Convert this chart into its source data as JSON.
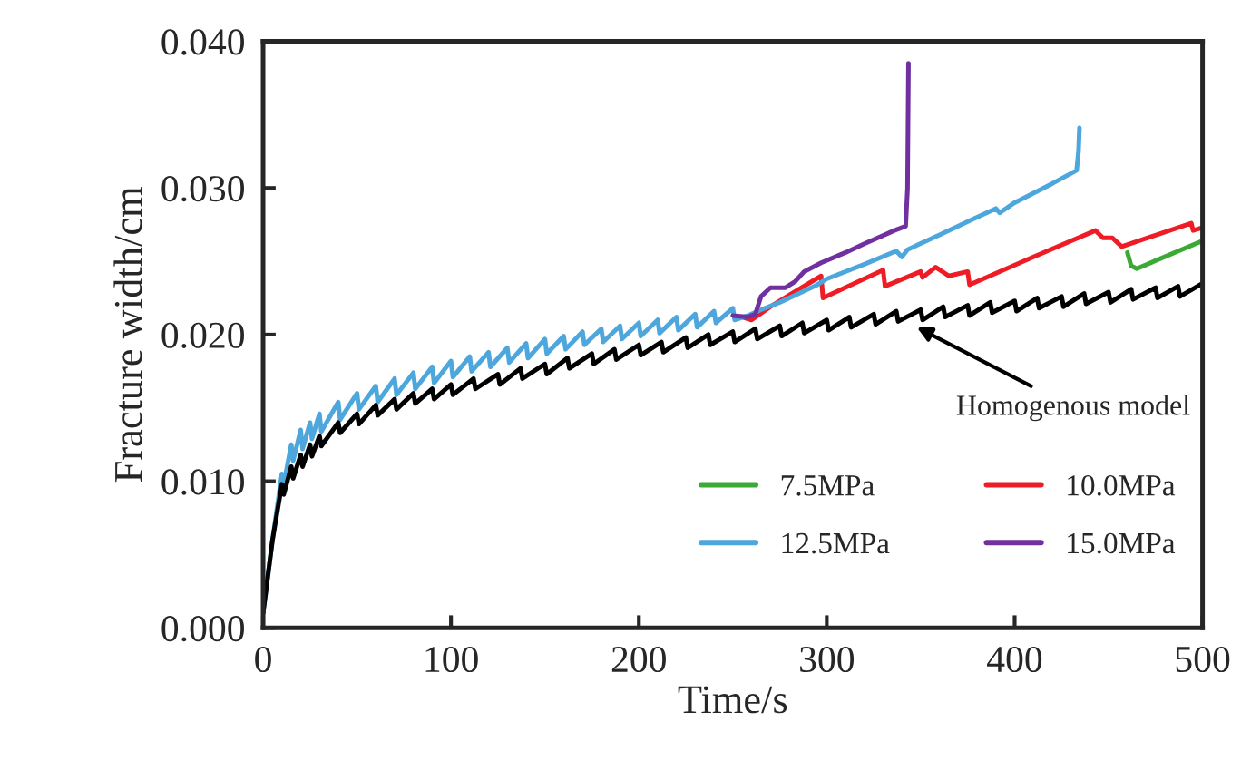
{
  "chart_data": {
    "type": "line",
    "xlabel": "Time/s",
    "ylabel": "Fracture width/cm",
    "xlim": [
      0,
      500
    ],
    "xticks": [
      0,
      100,
      200,
      300,
      400,
      500
    ],
    "ylim": [
      0,
      0.04
    ],
    "yticks": [
      {
        "value": 0,
        "label": "0.000"
      },
      {
        "value": 0.01,
        "label": "0.010"
      },
      {
        "value": 0.02,
        "label": "0.020"
      },
      {
        "value": 0.03,
        "label": "0.030"
      },
      {
        "value": 0.04,
        "label": "0.040"
      }
    ],
    "grid": false,
    "legend": "bottom right",
    "marker": "none",
    "line_style": "solid",
    "annotations": [
      {
        "text": "Homogenous model",
        "x": 348,
        "y": 0.0205
      }
    ],
    "series": [
      {
        "name": "7.5MPa",
        "color": "#3aaa35",
        "x": [
          460,
          462,
          465,
          500
        ],
        "values": [
          0.0256,
          0.0247,
          0.0245,
          0.0264
        ]
      },
      {
        "name": "10.0MPa",
        "color": "#ee1c25",
        "x": [
          255,
          260,
          270,
          280,
          297,
          298,
          330,
          331,
          350,
          351,
          358,
          365,
          375,
          376,
          410,
          443,
          447,
          452,
          457,
          494,
          495,
          500
        ],
        "values": [
          0.0212,
          0.021,
          0.0219,
          0.0227,
          0.024,
          0.0225,
          0.0244,
          0.0233,
          0.0243,
          0.0239,
          0.0246,
          0.024,
          0.0243,
          0.0234,
          0.0253,
          0.0271,
          0.0266,
          0.0266,
          0.026,
          0.0276,
          0.0271,
          0.0273
        ]
      },
      {
        "name": "12.5MPa",
        "color": "#4ea7dc",
        "x": [
          0,
          5,
          10,
          11,
          15,
          16,
          20,
          21,
          25,
          26,
          30,
          31,
          40,
          41,
          50,
          51,
          60,
          61,
          70,
          71,
          80,
          81,
          90,
          91,
          100,
          101,
          110,
          111,
          120,
          121,
          130,
          131,
          140,
          141,
          150,
          151,
          160,
          161,
          170,
          171,
          180,
          181,
          190,
          191,
          200,
          201,
          210,
          211,
          220,
          221,
          230,
          231,
          240,
          241,
          250,
          251,
          258,
          265,
          275,
          285,
          295,
          300,
          320,
          337,
          340,
          343,
          360,
          380,
          390,
          392,
          400,
          420,
          433,
          434,
          434.5
        ],
        "values": [
          0.001,
          0.006,
          0.0105,
          0.0098,
          0.0125,
          0.0114,
          0.0135,
          0.0122,
          0.014,
          0.0129,
          0.0146,
          0.0134,
          0.0154,
          0.0142,
          0.016,
          0.0149,
          0.0165,
          0.0154,
          0.017,
          0.0159,
          0.0174,
          0.0163,
          0.0178,
          0.0167,
          0.0182,
          0.0171,
          0.0185,
          0.0175,
          0.0188,
          0.0178,
          0.0191,
          0.0181,
          0.0194,
          0.0184,
          0.0197,
          0.0187,
          0.0199,
          0.019,
          0.0202,
          0.0193,
          0.0204,
          0.0195,
          0.0206,
          0.0197,
          0.0208,
          0.0199,
          0.021,
          0.0201,
          0.0212,
          0.0203,
          0.0214,
          0.0205,
          0.0216,
          0.0208,
          0.0218,
          0.021,
          0.0213,
          0.0217,
          0.0222,
          0.0228,
          0.0234,
          0.0238,
          0.0248,
          0.0257,
          0.0253,
          0.0258,
          0.0268,
          0.028,
          0.0286,
          0.0283,
          0.029,
          0.0303,
          0.0312,
          0.0325,
          0.0341
        ]
      },
      {
        "name": "15.0MPa",
        "color": "#7030a0",
        "x": [
          250,
          258,
          262,
          265,
          270,
          278,
          283,
          288,
          297,
          310,
          320,
          336,
          342,
          343,
          343.5
        ],
        "values": [
          0.0213,
          0.0212,
          0.0214,
          0.0226,
          0.0232,
          0.0232,
          0.0236,
          0.0243,
          0.0249,
          0.0256,
          0.0262,
          0.0271,
          0.0274,
          0.03,
          0.0385
        ]
      },
      {
        "color": "#000000",
        "x": [
          0,
          5,
          10,
          11,
          15,
          16,
          20,
          21,
          25,
          26,
          30,
          31,
          40,
          41,
          50,
          51,
          60,
          61,
          70,
          71,
          80,
          81,
          90,
          91,
          100,
          101,
          112,
          113,
          125,
          126,
          137,
          138,
          150,
          151,
          162,
          163,
          175,
          176,
          187,
          188,
          200,
          201,
          212,
          213,
          225,
          226,
          237,
          238,
          250,
          251,
          262,
          263,
          275,
          276,
          287,
          288,
          300,
          301,
          312,
          313,
          325,
          326,
          337,
          338,
          350,
          351,
          362,
          363,
          375,
          376,
          387,
          388,
          400,
          401,
          412,
          413,
          425,
          426,
          437,
          438,
          450,
          451,
          462,
          463,
          475,
          476,
          487,
          488,
          500
        ],
        "values": [
          0.001,
          0.006,
          0.0098,
          0.0091,
          0.011,
          0.0102,
          0.0118,
          0.011,
          0.0125,
          0.0117,
          0.0131,
          0.0124,
          0.014,
          0.0133,
          0.0146,
          0.0139,
          0.0152,
          0.0145,
          0.0156,
          0.0149,
          0.016,
          0.0153,
          0.0163,
          0.0156,
          0.0166,
          0.0159,
          0.017,
          0.0163,
          0.0173,
          0.0166,
          0.0177,
          0.017,
          0.018,
          0.0173,
          0.0184,
          0.0177,
          0.0187,
          0.018,
          0.019,
          0.0183,
          0.0193,
          0.0186,
          0.0195,
          0.0188,
          0.0198,
          0.0191,
          0.02,
          0.0193,
          0.0202,
          0.0195,
          0.0204,
          0.0197,
          0.0206,
          0.0199,
          0.0208,
          0.0201,
          0.021,
          0.0203,
          0.0212,
          0.0205,
          0.0214,
          0.0207,
          0.0216,
          0.0209,
          0.0217,
          0.021,
          0.0219,
          0.0212,
          0.022,
          0.0213,
          0.0222,
          0.0215,
          0.0223,
          0.0216,
          0.0225,
          0.0218,
          0.0226,
          0.0219,
          0.0228,
          0.0221,
          0.0229,
          0.0222,
          0.0231,
          0.0224,
          0.0232,
          0.0225,
          0.0233,
          0.0226,
          0.0235
        ]
      }
    ]
  }
}
